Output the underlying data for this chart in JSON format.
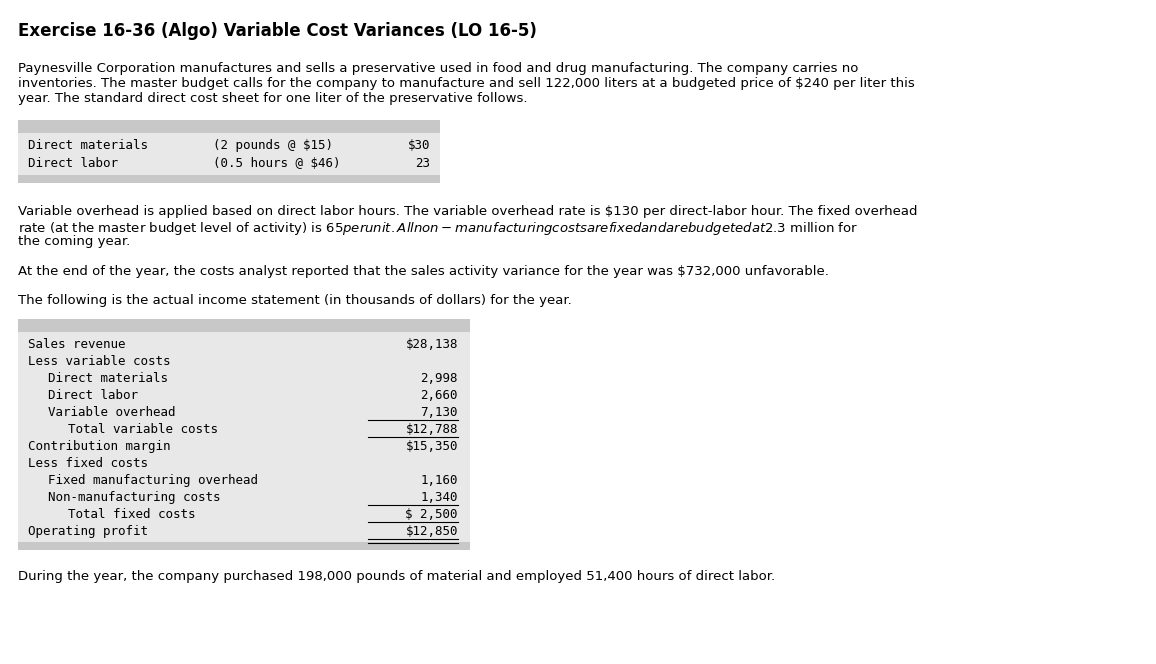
{
  "title": "Exercise 16-36 (Algo) Variable Cost Variances (LO 16-5)",
  "para1_lines": [
    "Paynesville Corporation manufactures and sells a preservative used in food and drug manufacturing. The company carries no",
    "inventories. The master budget calls for the company to manufacture and sell 122,000 liters at a budgeted price of $240 per liter this",
    "year. The standard direct cost sheet for one liter of the preservative follows."
  ],
  "table1_rows": [
    [
      "Direct materials",
      "(2 pounds @ $15)",
      "$30"
    ],
    [
      "Direct labor",
      "(0.5 hours @ $46)",
      "23"
    ]
  ],
  "para2_lines": [
    "Variable overhead is applied based on direct labor hours. The variable overhead rate is $130 per direct-labor hour. The fixed overhead",
    "rate (at the master budget level of activity) is $65 per unit. All non-manufacturing costs are fixed and are budgeted at $2.3 million for",
    "the coming year."
  ],
  "para3": "At the end of the year, the costs analyst reported that the sales activity variance for the year was $732,000 unfavorable.",
  "para4": "The following is the actual income statement (in thousands of dollars) for the year.",
  "income_statement": [
    {
      "label": "Sales revenue",
      "value": "$28,138",
      "indent": 0,
      "single_underline": false,
      "double_underline": false
    },
    {
      "label": "Less variable costs",
      "value": "",
      "indent": 0,
      "single_underline": false,
      "double_underline": false
    },
    {
      "label": "Direct materials",
      "value": "2,998",
      "indent": 1,
      "single_underline": false,
      "double_underline": false
    },
    {
      "label": "Direct labor",
      "value": "2,660",
      "indent": 1,
      "single_underline": false,
      "double_underline": false
    },
    {
      "label": "Variable overhead",
      "value": "7,130",
      "indent": 1,
      "single_underline": true,
      "double_underline": false
    },
    {
      "label": "Total variable costs",
      "value": "$12,788",
      "indent": 2,
      "single_underline": true,
      "double_underline": false
    },
    {
      "label": "Contribution margin",
      "value": "$15,350",
      "indent": 0,
      "single_underline": false,
      "double_underline": false
    },
    {
      "label": "Less fixed costs",
      "value": "",
      "indent": 0,
      "single_underline": false,
      "double_underline": false
    },
    {
      "label": "Fixed manufacturing overhead",
      "value": "1,160",
      "indent": 1,
      "single_underline": false,
      "double_underline": false
    },
    {
      "label": "Non-manufacturing costs",
      "value": "1,340",
      "indent": 1,
      "single_underline": true,
      "double_underline": false
    },
    {
      "label": "Total fixed costs",
      "value": "$ 2,500",
      "indent": 2,
      "single_underline": true,
      "double_underline": false
    },
    {
      "label": "Operating profit",
      "value": "$12,850",
      "indent": 0,
      "single_underline": false,
      "double_underline": true
    }
  ],
  "para5": "During the year, the company purchased 198,000 pounds of material and employed 51,400 hours of direct labor.",
  "bg_color": "#ffffff",
  "header_bar_color": "#c8c8c8",
  "table_body_color": "#e8e8e8",
  "footer_bar_color": "#c8c8c8",
  "font_size_title": 12,
  "font_size_body": 9.5,
  "font_size_mono": 9
}
